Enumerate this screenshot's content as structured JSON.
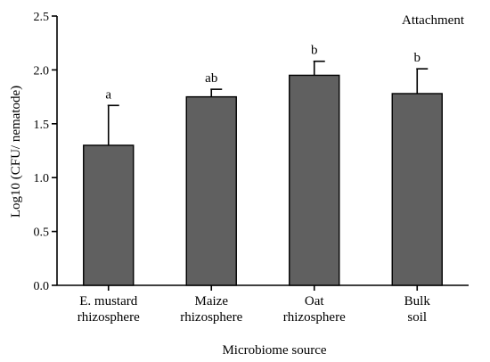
{
  "chart_data": {
    "type": "bar",
    "annotation": "Attachment",
    "categories": [
      [
        "E. mustard",
        "rhizosphere"
      ],
      [
        "Maize",
        "rhizosphere"
      ],
      [
        "Oat",
        "rhizosphere"
      ],
      [
        "Bulk",
        "soil"
      ]
    ],
    "values": [
      1.3,
      1.75,
      1.95,
      1.78
    ],
    "errors": [
      0.37,
      0.07,
      0.13,
      0.23
    ],
    "significance": [
      "a",
      "ab",
      "b",
      "b"
    ],
    "xlabel": "Microbiome source",
    "ylabel": "Log10 (CFU/ nematode)",
    "ylim": [
      0,
      2.5
    ],
    "yticks": [
      "0.0",
      "0.5",
      "1.0",
      "1.5",
      "2.0",
      "2.5"
    ],
    "bar_color": "#606060",
    "bar_edge_color": "#000000",
    "grid": false
  }
}
